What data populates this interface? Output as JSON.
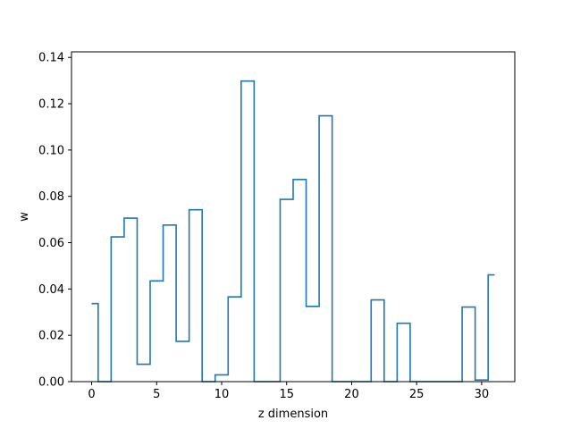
{
  "chart_data": {
    "type": "line",
    "style": "step",
    "xlabel": "z dimension",
    "ylabel": "w",
    "xlim": [
      -1.55,
      32.55
    ],
    "ylim": [
      0,
      0.1424
    ],
    "xticks": [
      0,
      5,
      10,
      15,
      20,
      25,
      30
    ],
    "yticks": [
      0.0,
      0.02,
      0.04,
      0.06,
      0.08,
      0.1,
      0.12,
      0.14
    ],
    "xtick_labels": [
      "0",
      "5",
      "10",
      "15",
      "20",
      "25",
      "30"
    ],
    "ytick_labels": [
      "0.00",
      "0.02",
      "0.04",
      "0.06",
      "0.08",
      "0.10",
      "0.12",
      "0.14"
    ],
    "grid": false,
    "color": "#1f77b4",
    "x": [
      0,
      1,
      2,
      3,
      4,
      5,
      6,
      7,
      8,
      9,
      10,
      11,
      12,
      13,
      14,
      15,
      16,
      17,
      18,
      19,
      20,
      21,
      22,
      23,
      24,
      25,
      26,
      27,
      28,
      29,
      30,
      31
    ],
    "y": [
      0.0337,
      0.0,
      0.0625,
      0.0706,
      0.0075,
      0.0435,
      0.0676,
      0.0174,
      0.0742,
      0.0,
      0.0029,
      0.0366,
      0.1298,
      0.0,
      0.0,
      0.0787,
      0.0873,
      0.0325,
      0.1148,
      0.0,
      0.0,
      0.0,
      0.0353,
      0.0,
      0.0252,
      0.0,
      0.0,
      0.0,
      0.0,
      0.0322,
      0.0007,
      0.0461
    ]
  }
}
